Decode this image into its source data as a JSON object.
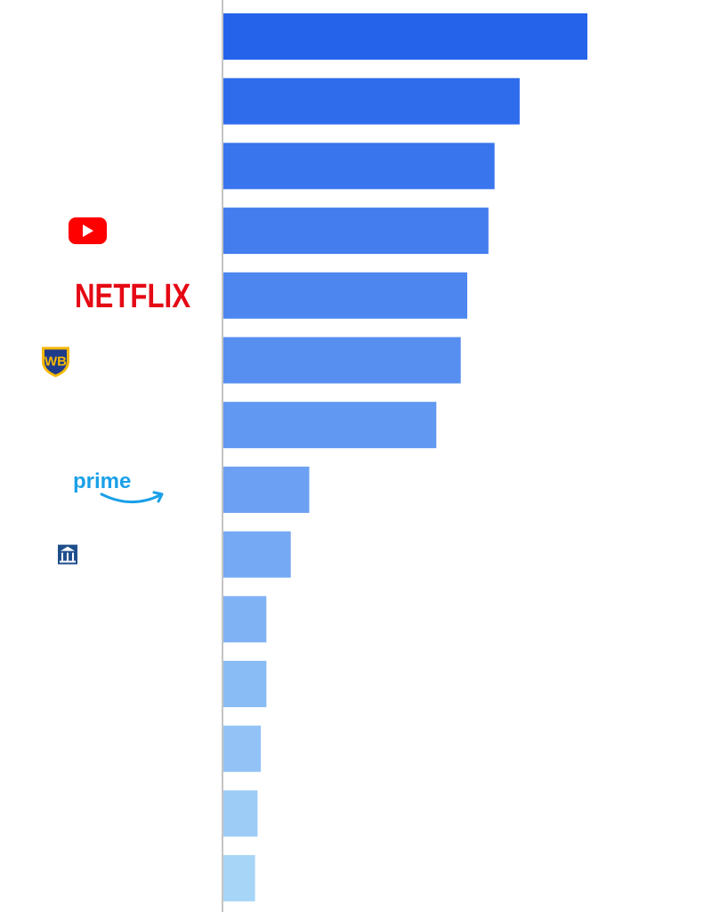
{
  "chart_data": {
    "type": "bar",
    "orientation": "horizontal",
    "title": "",
    "xlabel": "",
    "ylabel": "",
    "grid": false,
    "legend": "none",
    "xlim": [
      0,
      100
    ],
    "values": [
      100,
      81.4,
      74.5,
      72.8,
      67.0,
      65.2,
      58.5,
      23.6,
      18.5,
      11.8,
      11.8,
      10.3,
      9.4,
      8.7
    ],
    "color_gradient": [
      "#2563eb",
      "#a7d5f8"
    ],
    "axis_color": "#c4c4c4",
    "logos": [
      {
        "row": 3,
        "icon": "youtube-logo-icon",
        "color": "#ff0000"
      },
      {
        "row": 4,
        "icon": "netflix-logo-icon",
        "text": "NETFLIX",
        "color": "#e50914"
      },
      {
        "row": 5,
        "icon": "warner-bros-logo-icon",
        "text": "WB",
        "color": "#1e3a8a",
        "accent": "#f5b800"
      },
      {
        "row": 7,
        "icon": "prime-video-logo-icon",
        "text": "prime",
        "color": "#1aa0e8"
      },
      {
        "row": 8,
        "icon": "building-logo-icon",
        "color": "#1f4e8c"
      }
    ]
  }
}
